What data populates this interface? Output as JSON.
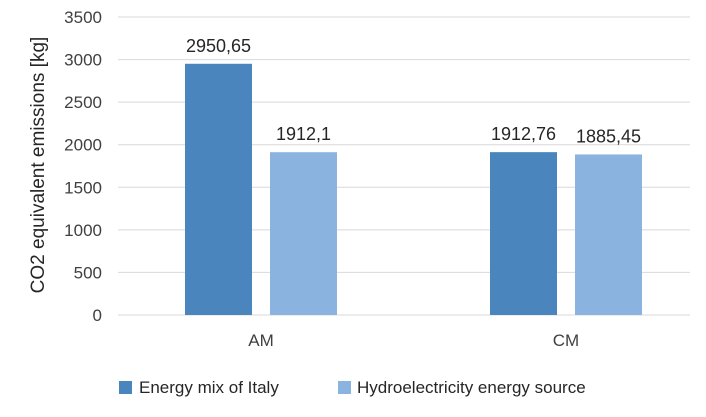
{
  "chart_data": {
    "type": "bar",
    "categories": [
      "AM",
      "CM"
    ],
    "series": [
      {
        "name": "Energy mix of Italy",
        "values": [
          2950.65,
          1912.76
        ],
        "labels": [
          "2950,65",
          "1912,76"
        ],
        "color": "#4a86bd"
      },
      {
        "name": "Hydroelectricity energy source",
        "values": [
          1912.1,
          1885.45
        ],
        "labels": [
          "1912,1",
          "1885,45"
        ],
        "color": "#8ab3df"
      }
    ],
    "title": "",
    "xlabel": "",
    "ylabel": "CO2 equivalent emissions [kg]",
    "ylim": [
      0,
      3500
    ],
    "yticks": [
      0,
      500,
      1000,
      1500,
      2000,
      2500,
      3000,
      3500
    ],
    "grid": true,
    "gridColor": "#d9d9d9",
    "legend": "bottom"
  }
}
